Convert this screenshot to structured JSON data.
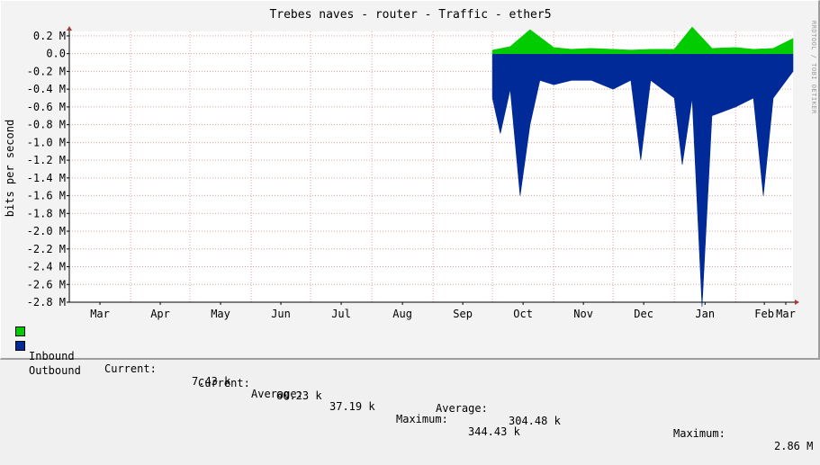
{
  "chart_data": {
    "type": "area",
    "title": "Trebes naves - router - Traffic - ether5",
    "ylabel": "bits per second",
    "watermark": "RRDTOOL / TOBI OETIKER",
    "x_ticks": [
      "Mar",
      "Apr",
      "May",
      "Jun",
      "Jul",
      "Aug",
      "Sep",
      "Oct",
      "Nov",
      "Dec",
      "Jan",
      "Feb",
      "Mar"
    ],
    "y_ticks": [
      "0.2 M",
      "0.0",
      "-0.2 M",
      "-0.4 M",
      "-0.6 M",
      "-0.8 M",
      "-1.0 M",
      "-1.2 M",
      "-1.4 M",
      "-1.6 M",
      "-1.8 M",
      "-2.0 M",
      "-2.2 M",
      "-2.4 M",
      "-2.6 M",
      "-2.8 M"
    ],
    "ylim": [
      -2.8,
      0.25
    ],
    "grid": true,
    "colors": {
      "inbound": "#00cc00",
      "outbound": "#002a97",
      "grid": "#e3a0a0",
      "axis": "#000000",
      "arrow": "#a83a3a"
    },
    "series": [
      {
        "name": "Inbound",
        "unit": "M bits/s",
        "x": [
          "2023-10-01",
          "2023-10-10",
          "2023-10-20",
          "2023-11-01",
          "2023-11-10",
          "2023-11-20",
          "2023-12-01",
          "2023-12-10",
          "2023-12-20",
          "2024-01-01",
          "2024-01-10",
          "2024-01-20",
          "2024-02-01",
          "2024-02-10",
          "2024-02-20",
          "2024-03-01"
        ],
        "values": [
          0.04,
          0.08,
          0.27,
          0.07,
          0.05,
          0.06,
          0.05,
          0.04,
          0.05,
          0.05,
          0.3,
          0.06,
          0.07,
          0.05,
          0.06,
          0.17
        ]
      },
      {
        "name": "Outbound",
        "unit": "M bits/s",
        "x": [
          "2023-10-01",
          "2023-10-05",
          "2023-10-10",
          "2023-10-15",
          "2023-10-20",
          "2023-10-25",
          "2023-11-01",
          "2023-11-10",
          "2023-11-20",
          "2023-12-01",
          "2023-12-10",
          "2023-12-15",
          "2023-12-20",
          "2024-01-01",
          "2024-01-05",
          "2024-01-10",
          "2024-01-15",
          "2024-01-20",
          "2024-02-01",
          "2024-02-10",
          "2024-02-15",
          "2024-02-20",
          "2024-03-01"
        ],
        "values": [
          -0.5,
          -0.9,
          -0.4,
          -1.6,
          -0.8,
          -0.3,
          -0.35,
          -0.3,
          -0.3,
          -0.4,
          -0.3,
          -1.2,
          -0.3,
          -0.5,
          -1.25,
          -0.5,
          -2.85,
          -0.7,
          -0.6,
          -0.5,
          -1.6,
          -0.5,
          -0.2
        ]
      }
    ]
  },
  "legend": {
    "inbound": {
      "name": "Inbound",
      "current_label": "Current:",
      "current": "7.43 k",
      "average_label": "Average:",
      "average": "37.19 k",
      "maximum_label": "Maximum:",
      "maximum": "344.43 k"
    },
    "outbound": {
      "name": "Outbound",
      "current_label": "Current:",
      "current": "60.23 k",
      "average_label": "Average:",
      "average": "304.48 k",
      "maximum_label": "Maximum:",
      "maximum": "2.86 M"
    }
  }
}
